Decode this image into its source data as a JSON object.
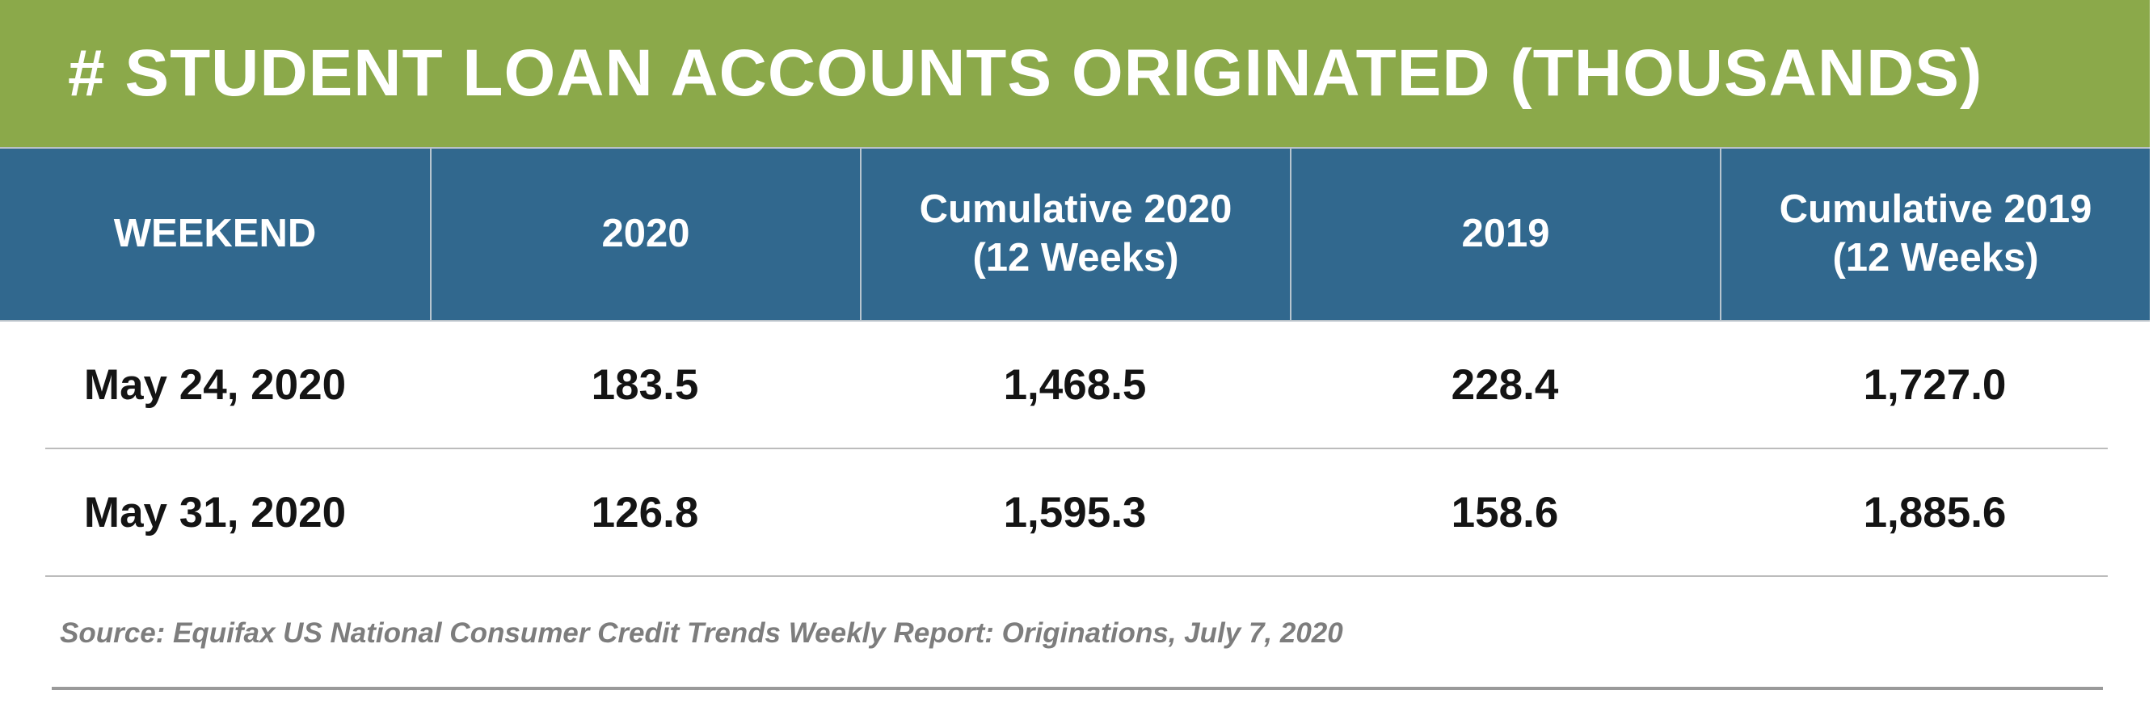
{
  "colors": {
    "title_bg": "#8BA94A",
    "header_bg": "#31688E",
    "header_text": "#FFFFFF",
    "body_text": "#141414",
    "source_text": "#7D7D7D",
    "column_divider": "#B7C5CF",
    "row_separator": "#BCBCBC",
    "bottom_rule": "#9A9A9A"
  },
  "chart_data": {
    "type": "table",
    "title": "# STUDENT LOAN ACCOUNTS ORIGINATED (THOUSANDS)",
    "units": "thousands",
    "columns": [
      "WEEKEND",
      "2020",
      "Cumulative 2020 (12 Weeks)",
      "2019",
      "Cumulative 2019 (12 Weeks)"
    ],
    "columns_display": [
      "WEEKEND",
      "2020",
      "Cumulative 2020\n(12 Weeks)",
      "2019",
      "Cumulative 2019\n(12 Weeks)"
    ],
    "rows": [
      [
        "May 24, 2020",
        "183.5",
        "1,468.5",
        "228.4",
        "1,727.0"
      ],
      [
        "May 31, 2020",
        "126.8",
        "1,595.3",
        "158.6",
        "1,885.6"
      ]
    ],
    "rows_numeric": [
      {
        "weekend": "May 24, 2020",
        "y2020": 183.5,
        "cumulative_2020_12wk": 1468.5,
        "y2019": 228.4,
        "cumulative_2019_12wk": 1727.0
      },
      {
        "weekend": "May 31, 2020",
        "y2020": 126.8,
        "cumulative_2020_12wk": 1595.3,
        "y2019": 158.6,
        "cumulative_2019_12wk": 1885.6
      }
    ],
    "source": "Source: Equifax US National Consumer Credit Trends Weekly Report: Originations, July 7, 2020"
  }
}
